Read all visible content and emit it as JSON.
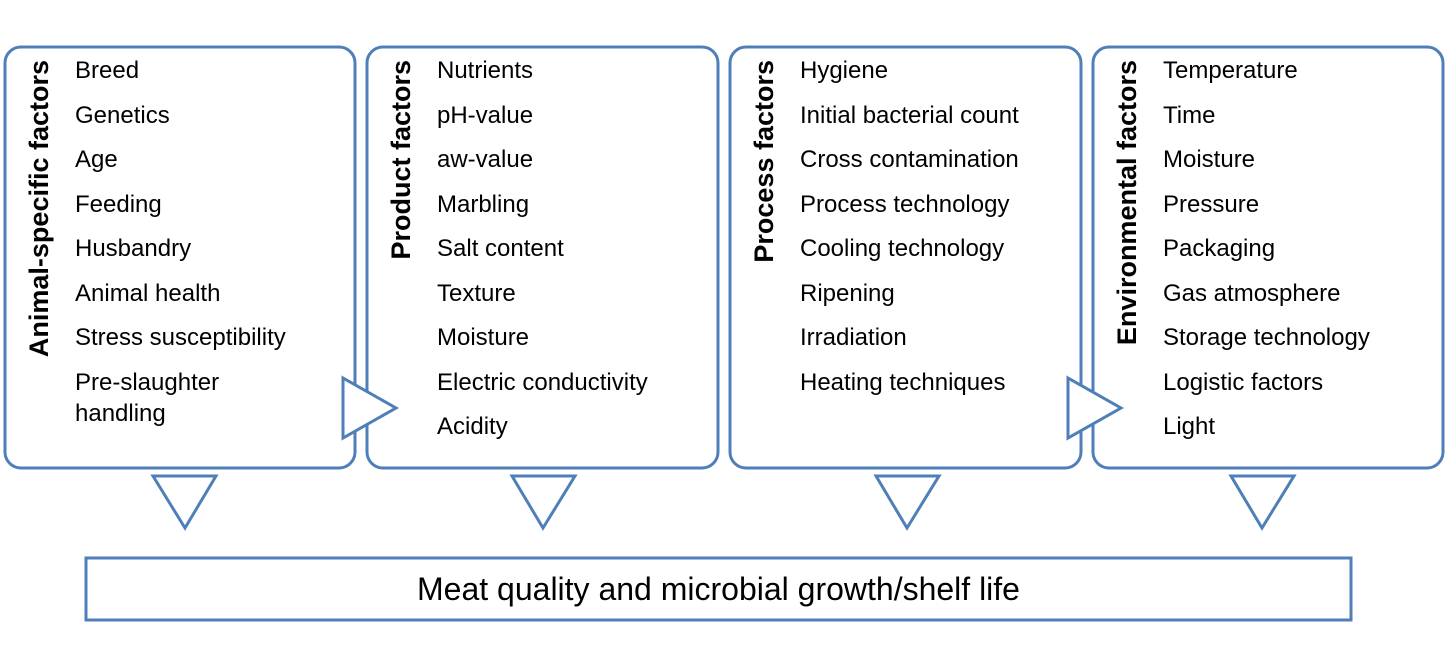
{
  "boxes": [
    {
      "title": "Animal-specific factors",
      "items": [
        "Breed",
        "Genetics",
        "Age",
        "Feeding",
        "Husbandry",
        "Animal health",
        "Stress susceptibility",
        "Pre-slaughter handling"
      ]
    },
    {
      "title": "Product factors",
      "items": [
        "Nutrients",
        "pH-value",
        "aw-value",
        "Marbling",
        "Salt content",
        "Texture",
        "Moisture",
        "Electric conductivity",
        "Acidity"
      ]
    },
    {
      "title": "Process factors",
      "items": [
        "Hygiene",
        "Initial bacterial count",
        "Cross contamination",
        "Process technology",
        "Cooling technology",
        "Ripening",
        "Irradiation",
        "Heating techniques"
      ]
    },
    {
      "title": "Environmental factors",
      "items": [
        "Temperature",
        "Time",
        "Moisture",
        "Pressure",
        "Packaging",
        "Gas atmosphere",
        "Storage technology",
        "Logistic factors",
        "Light"
      ]
    }
  ],
  "result": "Meat quality and microbial growth/shelf life"
}
